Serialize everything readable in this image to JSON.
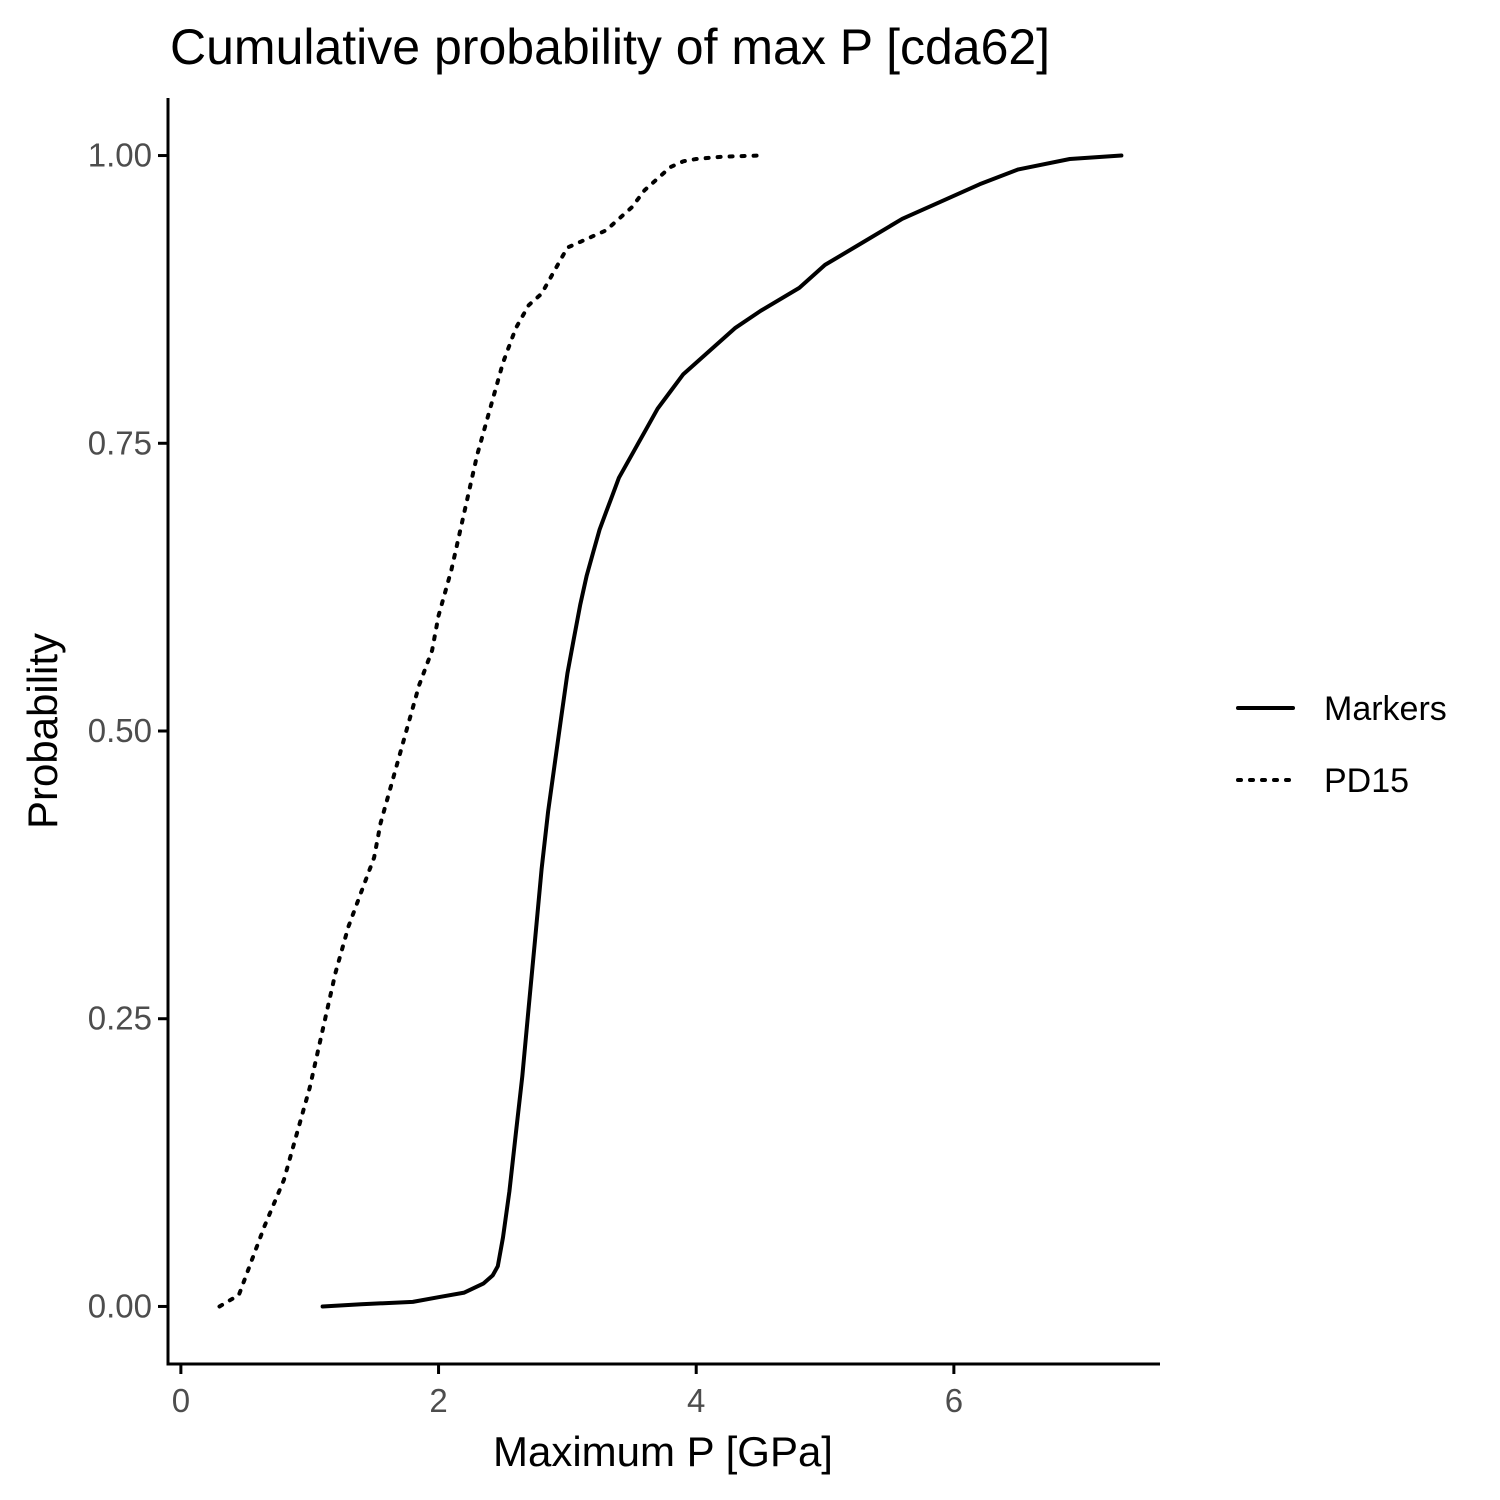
{
  "chart_data": {
    "type": "line",
    "title": "Cumulative probability of max P [cda62]",
    "xlabel": "Maximum P [GPa]",
    "ylabel": "Probability",
    "xlim": [
      -0.1,
      7.6
    ],
    "ylim": [
      -0.05,
      1.05
    ],
    "x_ticks": [
      0,
      2,
      4,
      6
    ],
    "x_tick_labels": [
      "0",
      "2",
      "4",
      "6"
    ],
    "y_ticks": [
      0,
      0.25,
      0.5,
      0.75,
      1
    ],
    "y_tick_labels": [
      "0.00",
      "0.25",
      "0.50",
      "0.75",
      "1.00"
    ],
    "grid": false,
    "legend_position": "right",
    "series": [
      {
        "name": "Markers",
        "line_style": "solid",
        "color": "#000000",
        "x": [
          1.1,
          1.4,
          1.8,
          2.0,
          2.2,
          2.35,
          2.42,
          2.46,
          2.5,
          2.55,
          2.6,
          2.65,
          2.7,
          2.75,
          2.8,
          2.85,
          2.9,
          2.95,
          3.0,
          3.05,
          3.1,
          3.15,
          3.2,
          3.25,
          3.3,
          3.35,
          3.4,
          3.5,
          3.6,
          3.7,
          3.8,
          3.9,
          4.0,
          4.1,
          4.2,
          4.3,
          4.5,
          4.8,
          5.0,
          5.3,
          5.6,
          5.9,
          6.2,
          6.5,
          6.9,
          7.3
        ],
        "y": [
          0.0,
          0.002,
          0.004,
          0.008,
          0.012,
          0.02,
          0.027,
          0.035,
          0.06,
          0.1,
          0.15,
          0.2,
          0.26,
          0.32,
          0.38,
          0.43,
          0.47,
          0.51,
          0.55,
          0.58,
          0.61,
          0.635,
          0.655,
          0.675,
          0.69,
          0.705,
          0.72,
          0.74,
          0.76,
          0.78,
          0.795,
          0.81,
          0.82,
          0.83,
          0.84,
          0.85,
          0.865,
          0.885,
          0.905,
          0.925,
          0.945,
          0.96,
          0.975,
          0.988,
          0.997,
          1.0
        ]
      },
      {
        "name": "PD15",
        "line_style": "dotted",
        "color": "#000000",
        "x": [
          0.3,
          0.45,
          0.55,
          0.65,
          0.8,
          0.9,
          1.0,
          1.1,
          1.2,
          1.3,
          1.4,
          1.5,
          1.55,
          1.65,
          1.75,
          1.85,
          1.95,
          2.0,
          2.1,
          2.2,
          2.3,
          2.4,
          2.5,
          2.6,
          2.7,
          2.8,
          2.9,
          3.0,
          3.1,
          3.2,
          3.3,
          3.4,
          3.5,
          3.6,
          3.7,
          3.8,
          3.9,
          4.0,
          4.2,
          4.5
        ],
        "y": [
          0.0,
          0.01,
          0.04,
          0.07,
          0.11,
          0.15,
          0.19,
          0.24,
          0.29,
          0.33,
          0.36,
          0.39,
          0.42,
          0.46,
          0.5,
          0.54,
          0.57,
          0.6,
          0.64,
          0.69,
          0.74,
          0.78,
          0.82,
          0.85,
          0.87,
          0.88,
          0.9,
          0.92,
          0.925,
          0.93,
          0.935,
          0.945,
          0.955,
          0.97,
          0.98,
          0.99,
          0.995,
          0.997,
          0.999,
          1.0
        ]
      }
    ]
  }
}
